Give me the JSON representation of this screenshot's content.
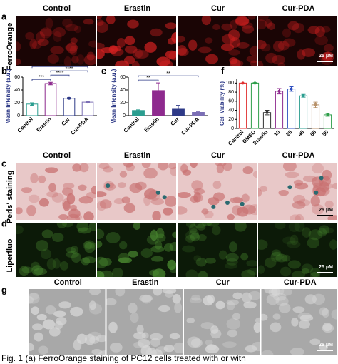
{
  "figure": {
    "columns": [
      "Control",
      "Erastin",
      "Cur",
      "Cur-PDA"
    ],
    "rows": [
      {
        "letter": "a",
        "label": "FerroOrange"
      },
      {
        "letter": "c",
        "label": "Perls' staining"
      },
      {
        "letter": "d",
        "label": "Liperfluo"
      },
      {
        "letter": "g"
      }
    ],
    "scale_bar": "25 μM",
    "caption": "Fig. 1  (a) FerroOrange staining of PC12 cells treated with or with"
  },
  "chart_data": [
    {
      "type": "bar",
      "letter": "b",
      "ylabel": "Mean Intensity (a.u.)",
      "categories": [
        "Control",
        "Erastin",
        "Cur",
        "Cur-PDA"
      ],
      "values": [
        18,
        50,
        27,
        21
      ],
      "errors": [
        2,
        2,
        1,
        1
      ],
      "colors": [
        "#2a9d8f",
        "#8e2a8e",
        "#2e3a87",
        "#7b6fb5"
      ],
      "bar_fill": "outline",
      "ylim": [
        0,
        60
      ],
      "yticks": [
        0,
        20,
        40,
        60
      ],
      "significance": [
        "***",
        "****",
        "****",
        "****"
      ]
    },
    {
      "type": "bar",
      "letter": "e",
      "ylabel": "Mean Intensity (a.u.)",
      "categories": [
        "Control",
        "Erastin",
        "Cur",
        "Cur-PDA"
      ],
      "values": [
        8,
        39,
        10,
        5
      ],
      "errors": [
        1,
        12,
        6,
        1
      ],
      "colors": [
        "#2a9d8f",
        "#8e2a8e",
        "#2e3a87",
        "#7b6fb5"
      ],
      "bar_fill": "solid",
      "ylim": [
        0,
        60
      ],
      "yticks": [
        0,
        20,
        40,
        60
      ],
      "significance": [
        "**",
        "**"
      ]
    },
    {
      "type": "bar",
      "letter": "f",
      "ylabel": "Cell Viability (%)",
      "categories": [
        "Control",
        "DMSO",
        "Erastin",
        "10",
        "20",
        "40",
        "60",
        "80"
      ],
      "values": [
        100,
        100,
        35,
        82,
        87,
        72,
        52,
        30
      ],
      "errors": [
        0,
        1,
        5,
        6,
        5,
        3,
        6,
        3
      ],
      "colors": [
        "#e03030",
        "#2e9e4a",
        "#333333",
        "#8e2a8e",
        "#3050c0",
        "#2a9d8f",
        "#b8926a",
        "#2e9e4a"
      ],
      "bar_fill": "outline",
      "ylim": [
        0,
        110
      ],
      "yticks": [
        0,
        20,
        40,
        60,
        80,
        100
      ]
    }
  ]
}
